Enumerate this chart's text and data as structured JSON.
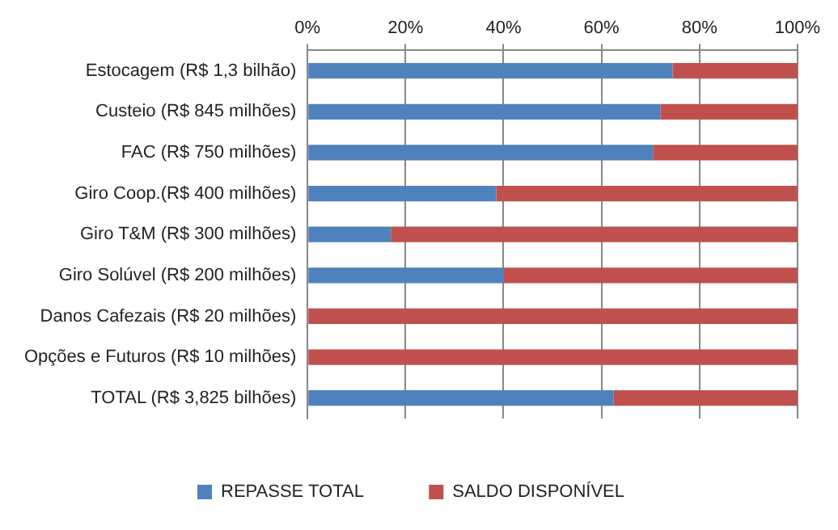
{
  "chart_data": {
    "type": "bar",
    "orientation": "horizontal",
    "stacked": true,
    "categories": [
      "Estocagem (R$ 1,3 bilhão)",
      "Custeio (R$ 845 milhões)",
      "FAC (R$ 750 milhões)",
      "Giro Coop.(R$ 400 milhões)",
      "Giro T&M (R$ 300 milhões)",
      "Giro Solúvel (R$ 200 milhões)",
      "Danos Cafezais (R$ 20 milhões)",
      "Opções e Futuros (R$ 10 milhões)",
      "TOTAL (R$ 3,825 bilhões)"
    ],
    "series": [
      {
        "name": "REPASSE TOTAL",
        "color": "#4f81bd",
        "values": [
          74.5,
          72,
          70.5,
          38.5,
          17,
          40,
          0,
          0,
          62.5
        ]
      },
      {
        "name": "SALDO DISPONÍVEL",
        "color": "#c0504d",
        "values": [
          25.5,
          28,
          29.5,
          61.5,
          83,
          60,
          100,
          100,
          37.5
        ]
      }
    ],
    "xlim": [
      0,
      100
    ],
    "xticks": [
      {
        "value": 0,
        "label": "0%"
      },
      {
        "value": 20,
        "label": "20%"
      },
      {
        "value": 40,
        "label": "40%"
      },
      {
        "value": 60,
        "label": "60%"
      },
      {
        "value": 80,
        "label": "80%"
      },
      {
        "value": 100,
        "label": "100%"
      }
    ],
    "grid": "x",
    "legend": "bottom"
  }
}
